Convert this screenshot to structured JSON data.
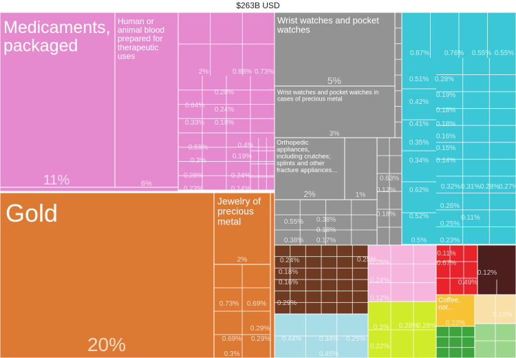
{
  "total_label": "$263B USD",
  "chart_data": {
    "type": "treemap",
    "total": "$263B USD",
    "tiles": [
      {
        "name": "Gold",
        "share": 20,
        "label": "20%",
        "color": "#dc7a33"
      },
      {
        "name": "Medicaments, packaged",
        "share": 11,
        "label": "11%",
        "color": "#e68ad0"
      },
      {
        "name": "Human or animal blood prepared for therapeutic uses",
        "share": 6,
        "label": "6%",
        "color": "#e68ad0"
      },
      {
        "name": "Wrist watches and pocket watches",
        "share": 5,
        "label": "5%",
        "color": "#939393"
      },
      {
        "name": "Wrist watches and pocket watches in cases of precious metal",
        "share": 3,
        "label": "3%",
        "color": "#939393"
      },
      {
        "name": "Orthopedic appliances, including crutches; splints and other fracture appliances...",
        "share": 2,
        "label": "2%",
        "color": "#939393"
      },
      {
        "name": "Jewelry of precious metal",
        "share": 2,
        "label": "2%",
        "color": "#dc7a33"
      },
      {
        "name": "Coffee, not...",
        "share": 0.73,
        "label": "0.73%",
        "color": "#f7c233"
      }
    ],
    "small_labels": [
      "2%",
      "0.88%",
      "0.73%",
      "0.28%",
      "0.64%",
      "0.24%",
      "0.33%",
      "0.18%",
      "0.59%",
      "0.4%",
      "0.3%",
      "0.19%",
      "0.28%",
      "0.24%",
      "0.23%",
      "0.14%",
      "0.87%",
      "0.76%",
      "0.55%",
      "0.55%",
      "0.51%",
      "0.28%",
      "0.42%",
      "0.19%",
      "0.18%",
      "0.41%",
      "0.18%",
      "0.16%",
      "0.35%",
      "0.15%",
      "0.34%",
      "0.14%",
      "0.62%",
      "0.32%",
      "0.31%",
      "0.28%",
      "0.27%",
      "0.26%",
      "0.52%",
      "0.25%",
      "0.11%",
      "0.5%",
      "0.23%",
      "1%",
      "0.63%",
      "0.12%",
      "0.18%",
      "0.55%",
      "0.38%",
      "0.18%",
      "0.38%",
      "0.17%",
      "0.73%",
      "0.69%",
      "0.29%",
      "0.69%",
      "0.29%",
      "0.3%",
      "0.24%",
      "0.18%",
      "0.16%",
      "0.25%",
      "0.29%",
      "0.25%",
      "0.24%",
      "0.12%",
      "0.11%",
      "0.67%",
      "0.12%",
      "0.49%",
      "0.44%",
      "0.34%",
      "0.25%",
      "0.45%",
      "0.3%",
      "0.28%",
      "0.28%",
      "0.22%",
      "0.23%",
      "0.12%"
    ]
  }
}
